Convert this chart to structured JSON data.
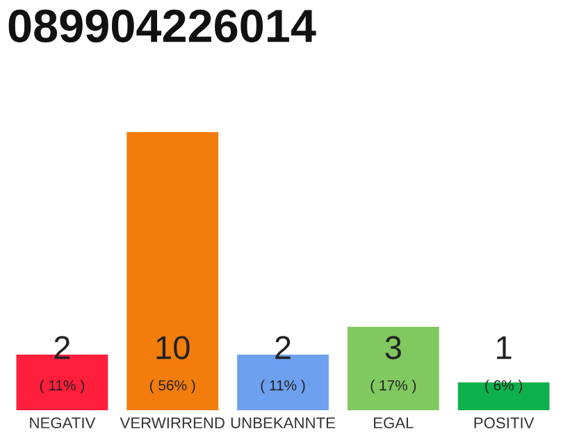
{
  "chart_data": {
    "type": "bar",
    "title": "089904226014",
    "categories": [
      "NEGATIV",
      "VERWIRREND",
      "UNBEKANNTE",
      "EGAL",
      "POSITIV"
    ],
    "values": [
      2,
      10,
      2,
      3,
      1
    ],
    "colors": [
      "#ff1e3c",
      "#f27d0c",
      "#6ea0f0",
      "#80c860",
      "#0db14b"
    ],
    "ylim": [
      0,
      10
    ],
    "tick_labels": "x",
    "grid": false,
    "legend": false,
    "data_labels": true,
    "annotations": [
      "( 11% )",
      "( 56% )",
      "( 11% )",
      "( 17% )",
      "( 6% )"
    ]
  }
}
